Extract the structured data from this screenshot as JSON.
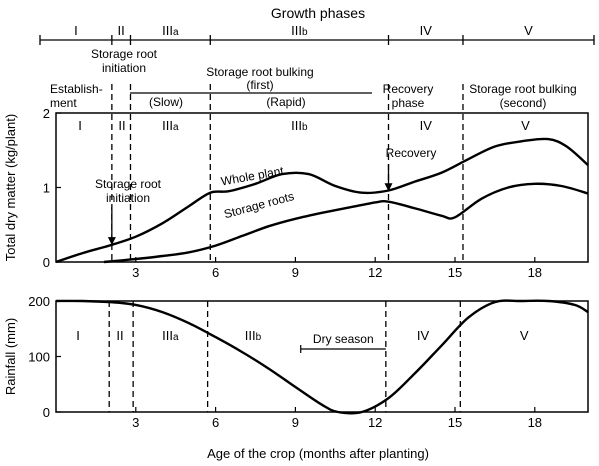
{
  "chart_data": [
    {
      "type": "line",
      "title": "Growth phases",
      "xlabel": "Age of the crop  (months after planting)",
      "ylabel": "Total dry matter (kg/plant)",
      "xlim": [
        0,
        20
      ],
      "ylim": [
        0,
        2
      ],
      "x_ticks": [
        3,
        6,
        9,
        12,
        15,
        18
      ],
      "y_ticks": [
        0,
        1,
        2
      ],
      "grid": false,
      "phase_bar": [
        "I",
        "II",
        "IIIa",
        "IIIb",
        "IV",
        "V"
      ],
      "phase_labels_in_plot": [
        "I",
        "II",
        "IIIa",
        "IIIb",
        "IV",
        "V"
      ],
      "phase_boundaries": [
        2.1,
        2.8,
        5.8,
        12.5,
        15.3
      ],
      "top_annotations": {
        "establishment": "Establish-\nment",
        "storage_root_initiation": "Storage root\ninitiation",
        "bulking_first": "Storage root bulking\n(first)",
        "slow": "(Slow)",
        "rapid": "(Rapid)",
        "recovery_phase": "Recovery\nphase",
        "bulking_second": "Storage root bulking\n(second)"
      },
      "annotations": [
        {
          "text": "Storage root\ninitiation",
          "x": 2.1,
          "y": 0.2
        },
        {
          "text": "Recovery",
          "x": 12.5,
          "y": 0.95
        }
      ],
      "series": [
        {
          "name": "Whole plant",
          "x": [
            0,
            1,
            2,
            3,
            4,
            5,
            5.8,
            6.5,
            7.5,
            8.5,
            9.5,
            10.5,
            11.5,
            12.5,
            13.5,
            14.5,
            15.5,
            16.5,
            17.5,
            18.5,
            19.2,
            20
          ],
          "y": [
            0,
            0.12,
            0.22,
            0.34,
            0.52,
            0.75,
            0.93,
            0.95,
            1.05,
            1.18,
            1.18,
            1.02,
            0.93,
            0.96,
            1.08,
            1.2,
            1.38,
            1.55,
            1.62,
            1.65,
            1.55,
            1.3
          ]
        },
        {
          "name": "Storage roots",
          "x": [
            1.8,
            3,
            4,
            5,
            6,
            7,
            8,
            9,
            10,
            11,
            12,
            12.5,
            13.5,
            14.5,
            15,
            16,
            17,
            18,
            19,
            20
          ],
          "y": [
            0,
            0.04,
            0.08,
            0.13,
            0.22,
            0.35,
            0.48,
            0.58,
            0.66,
            0.73,
            0.8,
            0.81,
            0.72,
            0.62,
            0.6,
            0.85,
            1.0,
            1.05,
            1.02,
            0.92
          ]
        }
      ]
    },
    {
      "type": "line",
      "xlabel": "Age of the crop  (months after planting)",
      "ylabel": "Rainfall (mm)",
      "xlim": [
        0,
        20
      ],
      "ylim": [
        0,
        200
      ],
      "x_ticks": [
        3,
        6,
        9,
        12,
        15,
        18
      ],
      "y_ticks": [
        0,
        100,
        200
      ],
      "phase_labels_in_plot": [
        "I",
        "II",
        "IIIa",
        "IIIb",
        "IV",
        "V"
      ],
      "phase_boundaries": [
        2.0,
        2.9,
        5.7,
        12.4,
        15.2
      ],
      "dry_season": {
        "label": "Dry season",
        "x_start": 9.2,
        "x_end": 12.4
      },
      "series": [
        {
          "x": [
            0,
            1,
            2,
            3,
            4,
            5,
            6,
            7,
            8,
            9,
            10,
            10.6,
            11.5,
            12.5,
            13.5,
            14.5,
            15.5,
            16.5,
            17.5,
            18.5,
            19.5,
            20
          ],
          "y": [
            200,
            200,
            198,
            193,
            180,
            160,
            135,
            108,
            78,
            45,
            13,
            0,
            0,
            25,
            70,
            120,
            170,
            198,
            200,
            200,
            193,
            180
          ]
        }
      ]
    }
  ]
}
